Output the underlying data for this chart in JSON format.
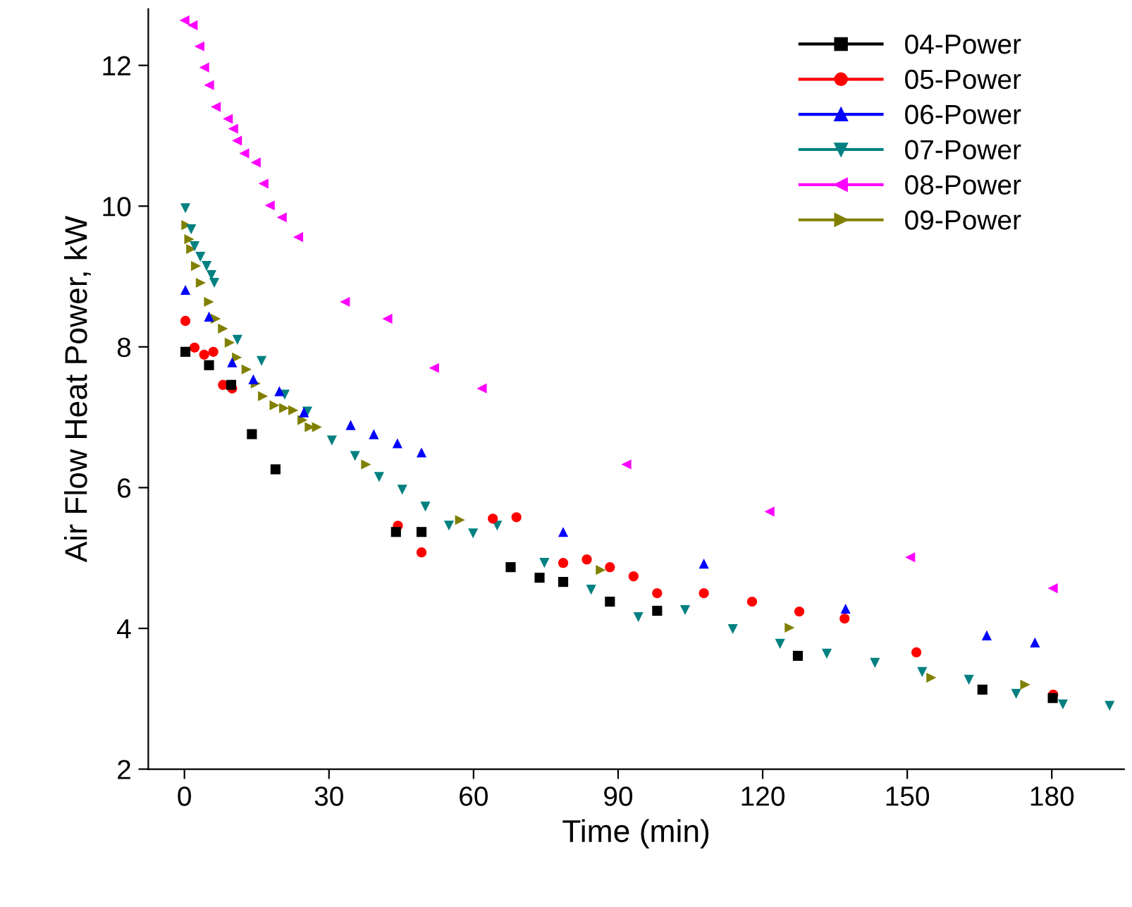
{
  "chart_data": {
    "type": "scatter",
    "xlabel": "Time (min)",
    "ylabel": "Air Flow Heat Power, kW",
    "xlim": [
      -7.5,
      195
    ],
    "xticks": [
      0,
      30,
      60,
      90,
      120,
      150,
      180
    ],
    "ylim": [
      2,
      12.8
    ],
    "yticks": [
      2,
      4,
      6,
      8,
      10,
      12
    ],
    "grid": false,
    "legend": "top right",
    "series": [
      {
        "name": "04-Power",
        "color": "#000000",
        "marker": "square",
        "x": [
          0.2,
          5.1,
          9.7,
          14.0,
          18.9,
          43.9,
          49.2,
          67.7,
          73.7,
          78.6,
          88.3,
          98.1,
          127.3,
          165.6,
          180.2
        ],
        "values": [
          7.93,
          7.74,
          7.46,
          6.76,
          6.26,
          5.37,
          5.37,
          4.87,
          4.72,
          4.66,
          4.38,
          4.25,
          3.61,
          3.13,
          3.01
        ]
      },
      {
        "name": "05-Power",
        "color": "#ff0000",
        "marker": "circle",
        "x": [
          0.2,
          2.1,
          4.1,
          6.0,
          8.0,
          9.9,
          44.3,
          49.2,
          64.0,
          68.9,
          78.6,
          83.5,
          88.3,
          93.2,
          98.1,
          107.8,
          117.8,
          127.6,
          137.0,
          151.9,
          180.3
        ],
        "values": [
          8.37,
          7.99,
          7.89,
          7.93,
          7.46,
          7.41,
          5.46,
          5.08,
          5.56,
          5.58,
          4.93,
          4.98,
          4.87,
          4.74,
          4.5,
          4.5,
          4.38,
          4.24,
          4.14,
          3.66,
          3.06
        ]
      },
      {
        "name": "06-Power",
        "color": "#0000ff",
        "marker": "triangle",
        "x": [
          0.2,
          5.1,
          9.9,
          14.3,
          19.7,
          24.8,
          34.5,
          39.3,
          44.2,
          49.2,
          78.6,
          107.8,
          137.2,
          166.5,
          176.5
        ],
        "values": [
          8.81,
          8.43,
          7.78,
          7.54,
          7.37,
          7.07,
          6.89,
          6.76,
          6.63,
          6.5,
          5.37,
          4.92,
          4.28,
          3.9,
          3.8
        ]
      },
      {
        "name": "07-Power",
        "color": "#008080",
        "marker": "triangle_down",
        "x": [
          0.2,
          1.4,
          2.1,
          3.3,
          4.6,
          5.6,
          6.2,
          11.0,
          16.0,
          20.8,
          25.5,
          30.6,
          35.4,
          40.4,
          45.2,
          50.0,
          54.9,
          59.9,
          64.9,
          74.7,
          84.4,
          94.2,
          103.9,
          113.8,
          123.6,
          133.3,
          143.3,
          153.1,
          162.8,
          172.6,
          182.3,
          192.0
        ],
        "values": [
          9.97,
          9.67,
          9.43,
          9.28,
          9.15,
          9.02,
          8.91,
          8.1,
          7.8,
          7.32,
          7.08,
          6.67,
          6.45,
          6.15,
          5.97,
          5.73,
          5.46,
          5.35,
          5.46,
          4.93,
          4.55,
          4.16,
          4.26,
          3.99,
          3.78,
          3.64,
          3.51,
          3.38,
          3.27,
          3.07,
          2.92,
          2.9
        ]
      },
      {
        "name": "08-Power",
        "color": "#ff00ff",
        "marker": "triangle_left",
        "x": [
          0.0,
          1.7,
          3.1,
          4.1,
          5.1,
          6.5,
          9.0,
          10.1,
          10.9,
          12.4,
          14.8,
          16.4,
          17.7,
          20.2,
          23.6,
          33.3,
          42.1,
          51.8,
          61.7,
          91.7,
          121.4,
          150.6,
          180.2
        ],
        "values": [
          12.64,
          12.57,
          12.27,
          11.97,
          11.72,
          11.41,
          11.24,
          11.1,
          10.93,
          10.75,
          10.62,
          10.32,
          10.01,
          9.84,
          9.56,
          8.64,
          8.4,
          7.7,
          7.41,
          6.33,
          5.66,
          5.01,
          4.57
        ]
      },
      {
        "name": "09-Power",
        "color": "#808000",
        "marker": "triangle_right",
        "x": [
          0.4,
          1.0,
          1.4,
          2.4,
          3.4,
          5.1,
          6.5,
          8.0,
          9.4,
          10.9,
          12.9,
          14.8,
          16.3,
          18.7,
          20.7,
          22.6,
          24.5,
          26.0,
          27.5,
          37.7,
          57.2,
          86.4,
          125.6,
          155.0,
          174.5
        ],
        "values": [
          9.73,
          9.53,
          9.39,
          9.15,
          8.91,
          8.64,
          8.4,
          8.26,
          8.06,
          7.85,
          7.68,
          7.48,
          7.3,
          7.17,
          7.13,
          7.1,
          6.96,
          6.86,
          6.86,
          6.33,
          5.54,
          4.83,
          4.01,
          3.3,
          3.2
        ]
      }
    ]
  }
}
